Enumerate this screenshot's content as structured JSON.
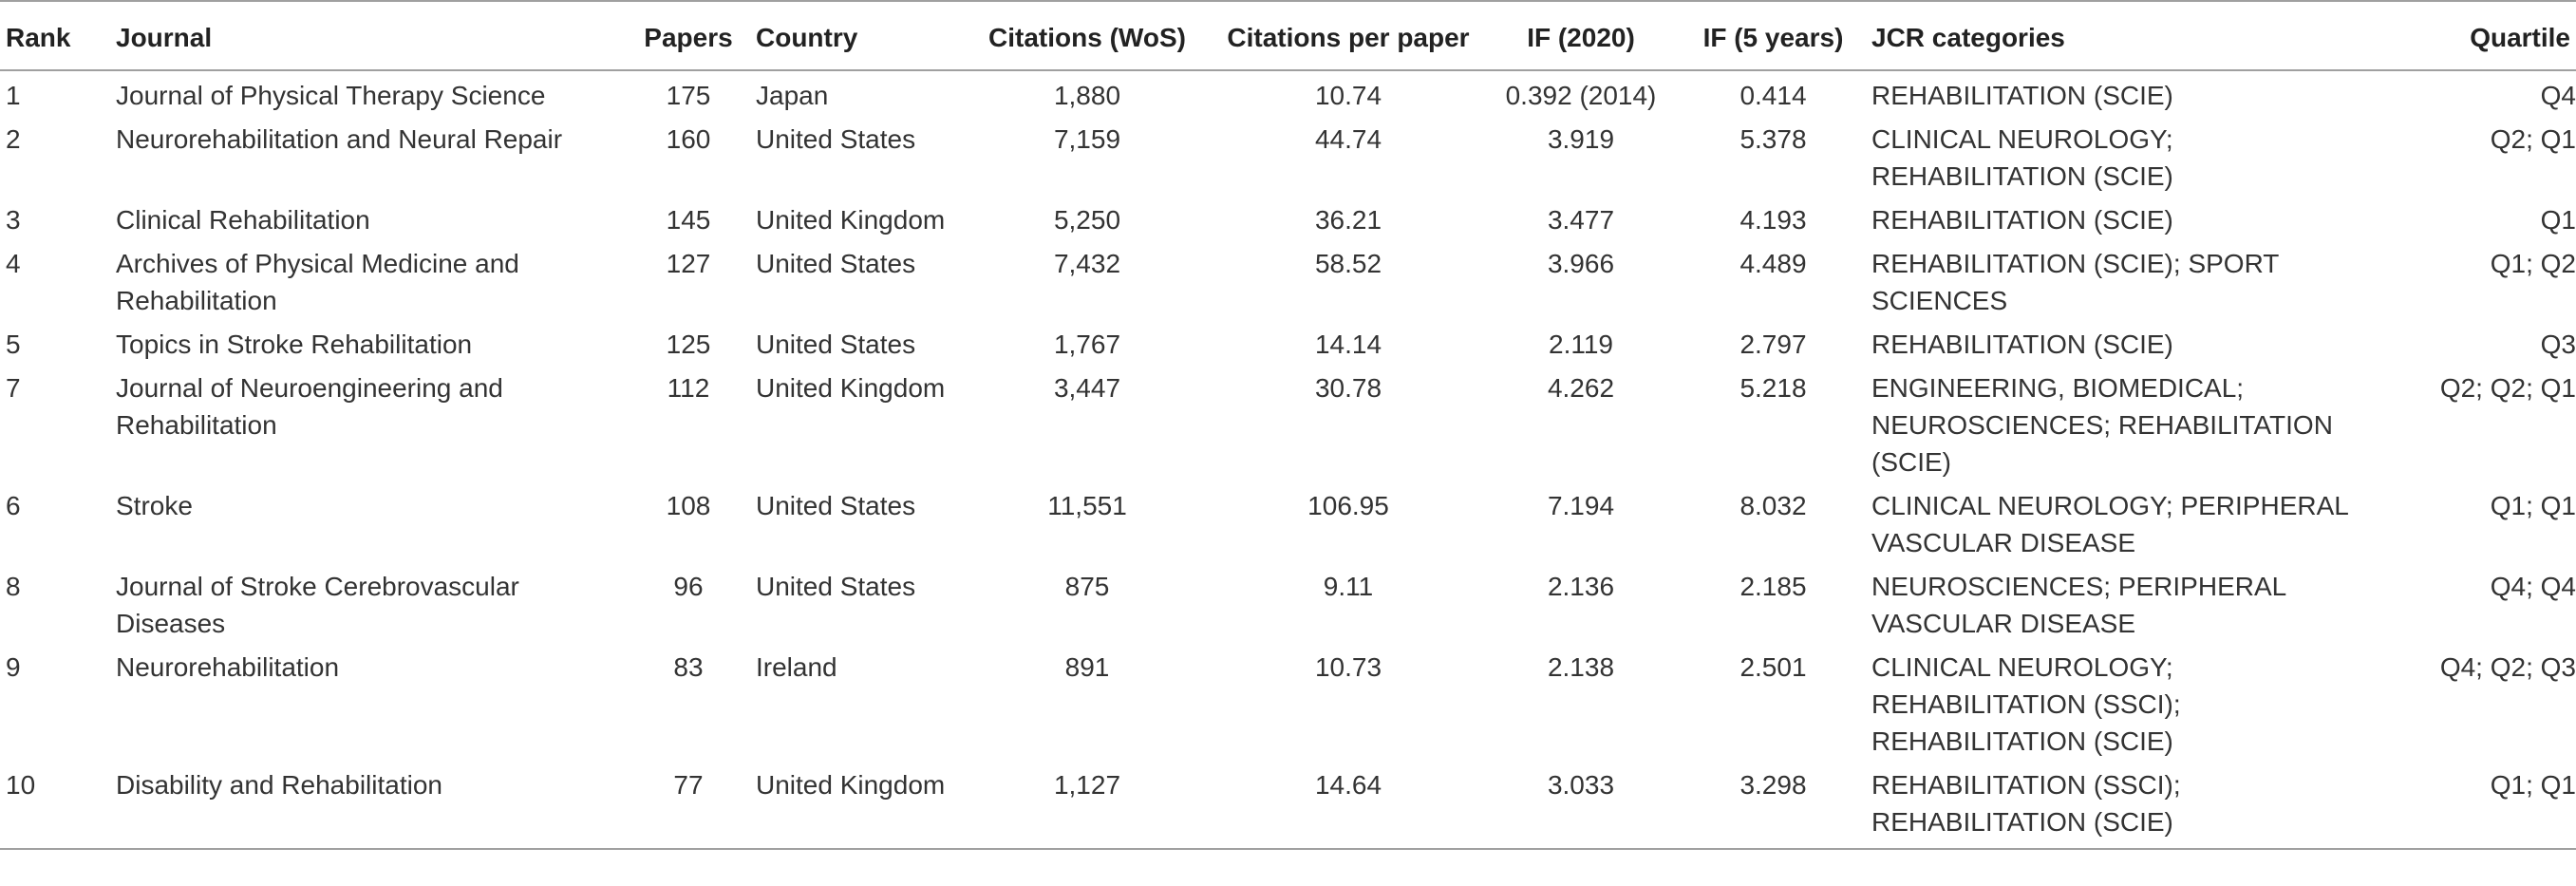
{
  "table": {
    "headers": {
      "rank": "Rank",
      "journal": "Journal",
      "papers": "Papers",
      "country": "Country",
      "citations": "Citations (WoS)",
      "cpp": "Citations per paper",
      "if2020": "IF (2020)",
      "if5": "IF (5 years)",
      "jcr": "JCR categories",
      "quartile": "Quartile"
    },
    "rows": [
      {
        "rank": "1",
        "journal": [
          "Journal of Physical Therapy Science"
        ],
        "papers": "175",
        "country": "Japan",
        "citations": "1,880",
        "cpp": "10.74",
        "if2020": "0.392 (2014)",
        "if5": "0.414",
        "jcr": [
          "REHABILITATION (SCIE)"
        ],
        "quartile": "Q4"
      },
      {
        "rank": "2",
        "journal": [
          "Neurorehabilitation and Neural Repair"
        ],
        "papers": "160",
        "country": "United States",
        "citations": "7,159",
        "cpp": "44.74",
        "if2020": "3.919",
        "if5": "5.378",
        "jcr": [
          "CLINICAL NEUROLOGY;",
          "REHABILITATION (SCIE)"
        ],
        "quartile": "Q2; Q1"
      },
      {
        "rank": "3",
        "journal": [
          "Clinical Rehabilitation"
        ],
        "papers": "145",
        "country": "United Kingdom",
        "citations": "5,250",
        "cpp": "36.21",
        "if2020": "3.477",
        "if5": "4.193",
        "jcr": [
          "REHABILITATION (SCIE)"
        ],
        "quartile": "Q1"
      },
      {
        "rank": "4",
        "journal": [
          "Archives of Physical Medicine and",
          "Rehabilitation"
        ],
        "papers": "127",
        "country": "United States",
        "citations": "7,432",
        "cpp": "58.52",
        "if2020": "3.966",
        "if5": "4.489",
        "jcr": [
          "REHABILITATION (SCIE); SPORT",
          "SCIENCES"
        ],
        "quartile": "Q1; Q2"
      },
      {
        "rank": "5",
        "journal": [
          "Topics in Stroke Rehabilitation"
        ],
        "papers": "125",
        "country": "United States",
        "citations": "1,767",
        "cpp": "14.14",
        "if2020": "2.119",
        "if5": "2.797",
        "jcr": [
          "REHABILITATION (SCIE)"
        ],
        "quartile": "Q3"
      },
      {
        "rank": "7",
        "journal": [
          "Journal of Neuroengineering and",
          "Rehabilitation"
        ],
        "papers": "112",
        "country": "United Kingdom",
        "citations": "3,447",
        "cpp": "30.78",
        "if2020": "4.262",
        "if5": "5.218",
        "jcr": [
          "ENGINEERING, BIOMEDICAL;",
          "NEUROSCIENCES; REHABILITATION",
          "(SCIE)"
        ],
        "quartile": "Q2; Q2; Q1"
      },
      {
        "rank": "6",
        "journal": [
          "Stroke"
        ],
        "papers": "108",
        "country": "United States",
        "citations": "11,551",
        "cpp": "106.95",
        "if2020": "7.194",
        "if5": "8.032",
        "jcr": [
          "CLINICAL NEUROLOGY; PERIPHERAL",
          "VASCULAR DISEASE"
        ],
        "quartile": "Q1; Q1"
      },
      {
        "rank": "8",
        "journal": [
          "Journal of Stroke Cerebrovascular",
          "Diseases"
        ],
        "papers": "96",
        "country": "United States",
        "citations": "875",
        "cpp": "9.11",
        "if2020": "2.136",
        "if5": "2.185",
        "jcr": [
          "NEUROSCIENCES; PERIPHERAL",
          "VASCULAR DISEASE"
        ],
        "quartile": "Q4; Q4"
      },
      {
        "rank": "9",
        "journal": [
          "Neurorehabilitation"
        ],
        "papers": "83",
        "country": "Ireland",
        "citations": "891",
        "cpp": "10.73",
        "if2020": "2.138",
        "if5": "2.501",
        "jcr": [
          "CLINICAL NEUROLOGY;",
          "REHABILITATION (SSCI);",
          "REHABILITATION (SCIE)"
        ],
        "quartile": "Q4; Q2; Q3"
      },
      {
        "rank": "10",
        "journal": [
          "Disability and Rehabilitation"
        ],
        "papers": "77",
        "country": "United Kingdom",
        "citations": "1,127",
        "cpp": "14.64",
        "if2020": "3.033",
        "if5": "3.298",
        "jcr": [
          "REHABILITATION (SSCI);",
          "REHABILITATION (SCIE)"
        ],
        "quartile": "Q1; Q1"
      }
    ]
  }
}
